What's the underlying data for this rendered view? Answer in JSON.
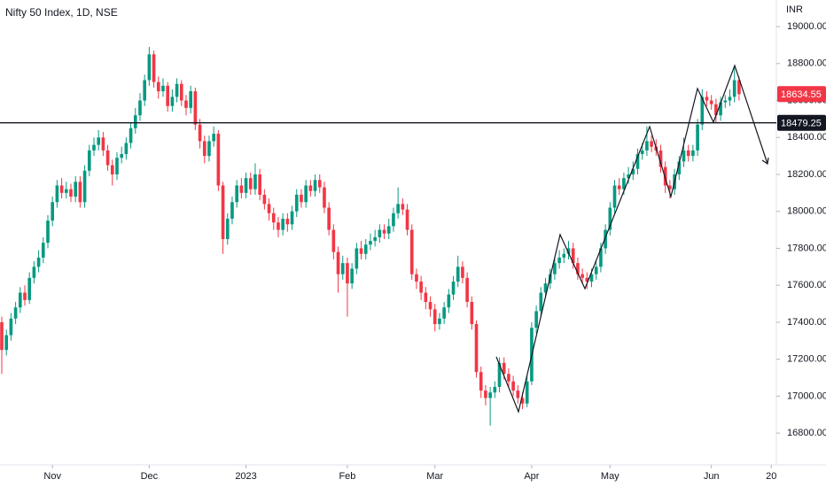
{
  "chart_data": {
    "type": "candlestick",
    "title": "Nifty 50 Index, 1D, NSE",
    "currency": "INR",
    "up_color": "#089981",
    "down_color": "#f23645",
    "grid": false,
    "xlim": [
      -0.385,
      168.1
    ],
    "xticks": [
      {
        "value": 11,
        "label": "Nov"
      },
      {
        "value": 32,
        "label": "Dec"
      },
      {
        "value": 53,
        "label": "2023"
      },
      {
        "value": 75,
        "label": "Feb"
      },
      {
        "value": 94,
        "label": "Mar"
      },
      {
        "value": 115,
        "label": "Apr"
      },
      {
        "value": 132,
        "label": "May"
      },
      {
        "value": 154,
        "label": "Jun"
      },
      {
        "value": 167,
        "label": "20"
      }
    ],
    "ylim": [
      16628,
      19144
    ],
    "yticks": [
      {
        "value": 16800,
        "label": "16800.00"
      },
      {
        "value": 17000,
        "label": "17000.00"
      },
      {
        "value": 17200,
        "label": "17200.00"
      },
      {
        "value": 17400,
        "label": "17400.00"
      },
      {
        "value": 17600,
        "label": "17600.00"
      },
      {
        "value": 17800,
        "label": "17800.00"
      },
      {
        "value": 18000,
        "label": "18000.00"
      },
      {
        "value": 18200,
        "label": "18200.00"
      },
      {
        "value": 18400,
        "label": "18400.00"
      },
      {
        "value": 18600,
        "label": "18600.00"
      },
      {
        "value": 18800,
        "label": "18800.00"
      },
      {
        "value": 19000,
        "label": "19000.00"
      }
    ],
    "hline": 18479.25,
    "open": [
      17400,
      17250,
      17330,
      17420,
      17480,
      17560,
      17520,
      17640,
      17700,
      17750,
      17830,
      17950,
      18050,
      18140,
      18100,
      18120,
      18080,
      18160,
      18050,
      18220,
      18330,
      18360,
      18400,
      18330,
      18250,
      18200,
      18290,
      18310,
      18370,
      18450,
      18520,
      18600,
      18710,
      18850,
      18700,
      18650,
      18680,
      18570,
      18620,
      18690,
      18600,
      18560,
      18650,
      18470,
      18380,
      18300,
      18380,
      18420,
      18140,
      17850,
      17960,
      18050,
      18140,
      18100,
      18180,
      18120,
      18200,
      18090,
      18040,
      17990,
      17940,
      17900,
      17960,
      17930,
      18000,
      18090,
      18050,
      18140,
      18110,
      18170,
      18130,
      18020,
      17900,
      17780,
      17660,
      17720,
      17610,
      17690,
      17800,
      17770,
      17820,
      17840,
      17860,
      17900,
      17880,
      17920,
      17990,
      18040,
      18010,
      17900,
      17660,
      17620,
      17560,
      17510,
      17470,
      17390,
      17420,
      17480,
      17550,
      17620,
      17700,
      17640,
      17510,
      17390,
      17130,
      17030,
      16990,
      17020,
      17050,
      17180,
      17120,
      17080,
      17030,
      16990,
      16960,
      17080,
      17370,
      17460,
      17560,
      17610,
      17660,
      17720,
      17750,
      17770,
      17800,
      17720,
      17660,
      17640,
      17620,
      17660,
      17700,
      17800,
      17900,
      18020,
      18140,
      18120,
      18180,
      18200,
      18230,
      18310,
      18330,
      18380,
      18350,
      18330,
      18240,
      18140,
      18120,
      18200,
      18270,
      18330,
      18300,
      18330,
      18470,
      18620,
      18600,
      18580,
      18520,
      18590,
      18600,
      18620,
      18710
    ],
    "high": [
      17430,
      17360,
      17450,
      17510,
      17590,
      17600,
      17670,
      17730,
      17790,
      17860,
      17980,
      18080,
      18170,
      18180,
      18160,
      18150,
      18190,
      18190,
      18250,
      18360,
      18400,
      18440,
      18430,
      18360,
      18280,
      18320,
      18350,
      18400,
      18480,
      18560,
      18640,
      18740,
      18890,
      18870,
      18730,
      18720,
      18700,
      18660,
      18720,
      18710,
      18630,
      18680,
      18670,
      18500,
      18410,
      18410,
      18460,
      18440,
      18160,
      17990,
      18080,
      18170,
      18180,
      18210,
      18210,
      18260,
      18230,
      18120,
      18070,
      18020,
      17970,
      17990,
      17990,
      18030,
      18120,
      18120,
      18170,
      18170,
      18200,
      18200,
      18160,
      18050,
      17930,
      17810,
      17760,
      17750,
      17720,
      17830,
      17840,
      17850,
      17880,
      17900,
      17930,
      17930,
      17960,
      18020,
      18130,
      18070,
      18040,
      17930,
      17690,
      17650,
      17590,
      17540,
      17500,
      17450,
      17510,
      17580,
      17650,
      17760,
      17730,
      17670,
      17540,
      17410,
      17160,
      17060,
      17050,
      17080,
      17210,
      17210,
      17150,
      17110,
      17060,
      17020,
      17110,
      17400,
      17490,
      17590,
      17640,
      17690,
      17750,
      17790,
      17800,
      17840,
      17830,
      17750,
      17690,
      17670,
      17690,
      17730,
      17830,
      17930,
      18050,
      18170,
      18180,
      18210,
      18240,
      18270,
      18340,
      18370,
      18460,
      18410,
      18390,
      18360,
      18270,
      18170,
      18230,
      18300,
      18400,
      18360,
      18360,
      18500,
      18660,
      18650,
      18630,
      18610,
      18620,
      18630,
      18660,
      18780,
      18730
    ],
    "low": [
      17120,
      17220,
      17300,
      17390,
      17450,
      17490,
      17500,
      17610,
      17670,
      17720,
      17800,
      17920,
      18020,
      18070,
      18070,
      18050,
      18050,
      18020,
      18020,
      18190,
      18300,
      18330,
      18300,
      18220,
      18140,
      18170,
      18260,
      18280,
      18340,
      18420,
      18490,
      18570,
      18680,
      18670,
      18610,
      18620,
      18540,
      18540,
      18590,
      18570,
      18520,
      18530,
      18440,
      18340,
      18260,
      18270,
      18350,
      18110,
      17770,
      17820,
      17930,
      18020,
      18070,
      18070,
      18090,
      18090,
      18060,
      18010,
      17950,
      17900,
      17860,
      17870,
      17890,
      17900,
      17970,
      18020,
      18020,
      18080,
      18080,
      18100,
      17990,
      17870,
      17740,
      17560,
      17630,
      17430,
      17580,
      17660,
      17740,
      17740,
      17790,
      17810,
      17830,
      17850,
      17850,
      17890,
      17960,
      17980,
      17870,
      17630,
      17580,
      17520,
      17470,
      17430,
      17350,
      17360,
      17390,
      17450,
      17520,
      17590,
      17610,
      17480,
      17360,
      17100,
      16990,
      16950,
      16840,
      16990,
      17020,
      17090,
      17050,
      17000,
      16960,
      16930,
      16940,
      17060,
      17340,
      17430,
      17530,
      17580,
      17630,
      17690,
      17720,
      17740,
      17690,
      17630,
      17610,
      17580,
      17590,
      17630,
      17670,
      17770,
      17870,
      17990,
      18090,
      18090,
      18150,
      18170,
      18200,
      18280,
      18300,
      18320,
      18300,
      18210,
      18100,
      18070,
      18090,
      18170,
      18240,
      18270,
      18270,
      18300,
      18440,
      18570,
      18550,
      18480,
      18490,
      18560,
      18570,
      18590,
      18600
    ],
    "close": [
      17250,
      17330,
      17420,
      17480,
      17560,
      17520,
      17640,
      17700,
      17750,
      17830,
      17950,
      18050,
      18140,
      18100,
      18120,
      18080,
      18160,
      18050,
      18220,
      18330,
      18360,
      18400,
      18330,
      18250,
      18200,
      18290,
      18310,
      18370,
      18450,
      18520,
      18600,
      18710,
      18850,
      18700,
      18650,
      18680,
      18570,
      18620,
      18690,
      18600,
      18560,
      18650,
      18470,
      18380,
      18300,
      18380,
      18420,
      18140,
      17850,
      17960,
      18050,
      18140,
      18100,
      18180,
      18120,
      18200,
      18090,
      18040,
      17990,
      17940,
      17900,
      17960,
      17930,
      18000,
      18090,
      18050,
      18140,
      18110,
      18170,
      18130,
      18020,
      17900,
      17780,
      17660,
      17720,
      17610,
      17690,
      17800,
      17770,
      17820,
      17840,
      17860,
      17900,
      17880,
      17920,
      17990,
      18040,
      18010,
      17900,
      17660,
      17620,
      17560,
      17510,
      17470,
      17390,
      17420,
      17480,
      17550,
      17620,
      17700,
      17640,
      17510,
      17390,
      17130,
      17030,
      16990,
      17020,
      17050,
      17180,
      17120,
      17080,
      17030,
      16990,
      16960,
      17080,
      17370,
      17460,
      17560,
      17610,
      17660,
      17720,
      17750,
      17770,
      17800,
      17720,
      17660,
      17640,
      17620,
      17660,
      17700,
      17800,
      17900,
      18020,
      18140,
      18120,
      18180,
      18200,
      18230,
      18310,
      18330,
      18380,
      18350,
      18330,
      18240,
      18140,
      18120,
      18200,
      18270,
      18330,
      18300,
      18330,
      18470,
      18620,
      18600,
      18580,
      18520,
      18590,
      18600,
      18620,
      18710,
      18634.55
    ]
  }
}
